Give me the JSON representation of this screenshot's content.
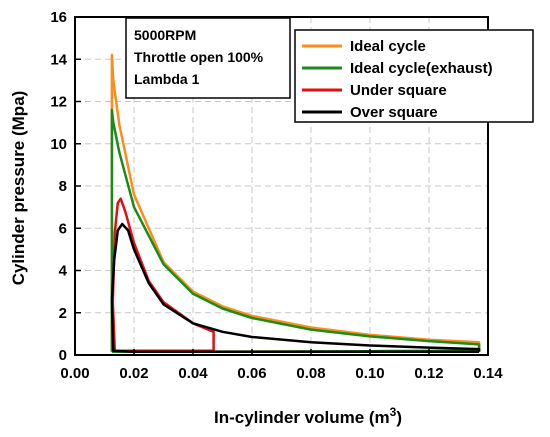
{
  "chart_data": {
    "type": "line",
    "xlabel": "In-cylinder volume (m",
    "xlabel_sup": "3",
    "xlabel_end": ")",
    "ylabel": "Cylinder pressure (Mpa)",
    "xlim": [
      0.0,
      0.14
    ],
    "ylim": [
      0,
      16
    ],
    "x_ticks": [
      "0.00",
      "0.02",
      "0.04",
      "0.06",
      "0.08",
      "0.10",
      "0.12",
      "0.14"
    ],
    "y_ticks": [
      "0",
      "2",
      "4",
      "6",
      "8",
      "10",
      "12",
      "14",
      "16"
    ],
    "grid": true,
    "legend_position": "top-right",
    "annotation": [
      "5000RPM",
      "Throttle open 100%",
      "Lambda 1"
    ],
    "series": [
      {
        "name": "Ideal cycle",
        "color": "#ff8c1a",
        "x": [
          0.0125,
          0.0125,
          0.013,
          0.015,
          0.02,
          0.03,
          0.04,
          0.05,
          0.06,
          0.08,
          0.1,
          0.12,
          0.137,
          0.137,
          0.1,
          0.06,
          0.03,
          0.0125
        ],
        "y": [
          0.15,
          14.2,
          13.0,
          10.9,
          7.6,
          4.4,
          3.0,
          2.3,
          1.85,
          1.3,
          0.95,
          0.72,
          0.6,
          0.2,
          0.18,
          0.16,
          0.15,
          0.15
        ]
      },
      {
        "name": "Ideal cycle(exhaust)",
        "color": "#1a8c1a",
        "x": [
          0.0125,
          0.0125,
          0.013,
          0.015,
          0.02,
          0.03,
          0.04,
          0.05,
          0.06,
          0.08,
          0.1,
          0.12,
          0.137,
          0.137,
          0.1,
          0.06,
          0.03,
          0.0125
        ],
        "y": [
          0.15,
          11.6,
          11.0,
          9.6,
          7.0,
          4.3,
          2.9,
          2.2,
          1.75,
          1.2,
          0.88,
          0.66,
          0.5,
          0.2,
          0.18,
          0.16,
          0.15,
          0.15
        ]
      },
      {
        "name": "Under square",
        "color": "#e01010",
        "x": [
          0.047,
          0.03,
          0.02,
          0.0135,
          0.0128,
          0.0135,
          0.0145,
          0.0155,
          0.017,
          0.02,
          0.025,
          0.03,
          0.04,
          0.047,
          0.047
        ],
        "y": [
          0.2,
          0.2,
          0.2,
          0.2,
          2.5,
          5.8,
          7.2,
          7.4,
          6.8,
          5.3,
          3.5,
          2.5,
          1.5,
          1.1,
          0.2
        ]
      },
      {
        "name": "Over square",
        "color": "#000000",
        "x": [
          0.137,
          0.1,
          0.06,
          0.03,
          0.02,
          0.013,
          0.0125,
          0.0133,
          0.0145,
          0.016,
          0.018,
          0.02,
          0.025,
          0.03,
          0.04,
          0.05,
          0.06,
          0.08,
          0.1,
          0.12,
          0.137,
          0.137
        ],
        "y": [
          0.15,
          0.15,
          0.15,
          0.15,
          0.15,
          0.2,
          2.6,
          4.5,
          5.9,
          6.2,
          5.9,
          5.0,
          3.4,
          2.4,
          1.5,
          1.1,
          0.85,
          0.6,
          0.45,
          0.35,
          0.28,
          0.15
        ]
      }
    ]
  }
}
